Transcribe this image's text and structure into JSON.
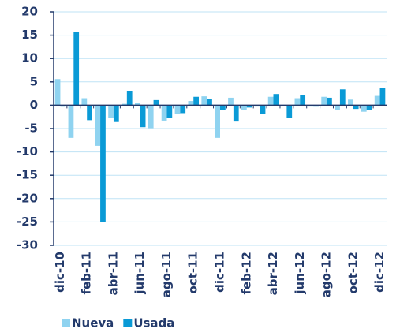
{
  "chart_data": {
    "type": "bar",
    "categories": [
      "dic-10",
      null,
      "feb-11",
      null,
      "abr-11",
      null,
      "jun-11",
      null,
      "ago-11",
      null,
      "oct-11",
      null,
      "dic-11",
      null,
      "feb-12",
      null,
      "abr-12",
      null,
      "jun-12",
      null,
      "ago-12",
      null,
      "oct-12",
      null,
      "dic-12"
    ],
    "series": [
      {
        "name": "Nueva",
        "color": "#8fd3f0",
        "values": [
          5.6,
          -7.0,
          1.5,
          -8.7,
          -2.8,
          0.3,
          0.5,
          -4.9,
          -3.3,
          -1.8,
          0.9,
          1.9,
          -7.0,
          1.6,
          -1.1,
          -0.3,
          1.8,
          -0.2,
          1.5,
          -0.3,
          1.8,
          -1.1,
          1.2,
          -1.4,
          2.0
        ]
      },
      {
        "name": "Usada",
        "color": "#0a9ad6",
        "values": [
          -0.3,
          15.7,
          -3.2,
          -25,
          -3.6,
          3.1,
          -4.7,
          1.1,
          -2.8,
          -1.7,
          1.8,
          1.4,
          -1.1,
          -3.5,
          -0.5,
          -1.8,
          2.4,
          -2.8,
          2.1,
          -0.3,
          1.6,
          3.4,
          -0.8,
          -1.0,
          3.7
        ]
      }
    ],
    "ylim": [
      -30,
      20
    ],
    "yticks": [
      -30,
      -25,
      -20,
      -15,
      -10,
      -5,
      0,
      5,
      10,
      15,
      20
    ],
    "grid": true
  }
}
